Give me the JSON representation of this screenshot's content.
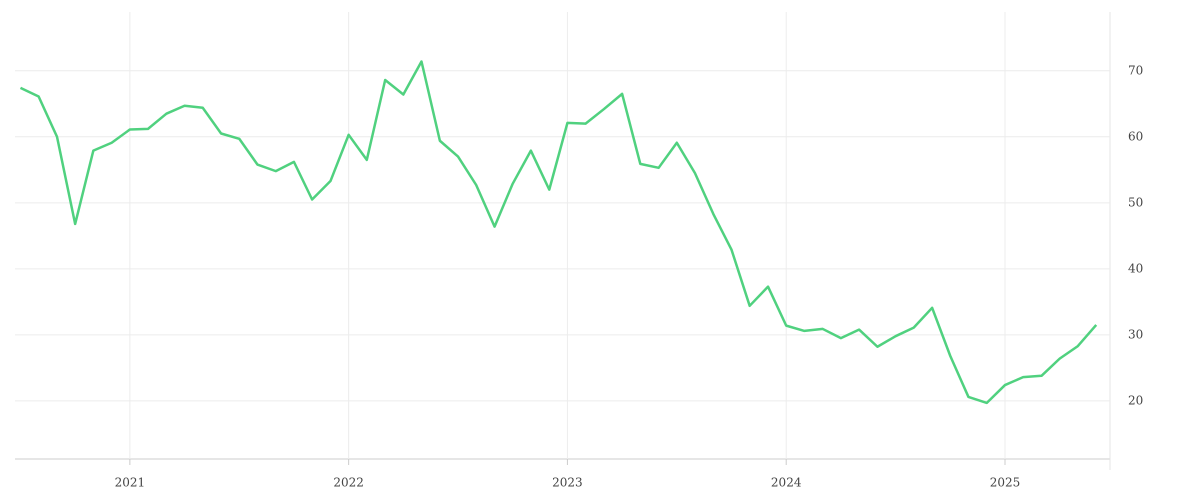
{
  "chart_data": {
    "type": "line",
    "color": "#50d17f",
    "grid": true,
    "x": [
      2020.5,
      2020.583,
      2020.667,
      2020.75,
      2020.833,
      2020.917,
      2021,
      2021.083,
      2021.167,
      2021.25,
      2021.333,
      2021.417,
      2021.5,
      2021.583,
      2021.667,
      2021.75,
      2021.833,
      2021.917,
      2022,
      2022.083,
      2022.167,
      2022.25,
      2022.333,
      2022.417,
      2022.5,
      2022.583,
      2022.667,
      2022.75,
      2022.833,
      2022.917,
      2023,
      2023.083,
      2023.167,
      2023.25,
      2023.333,
      2023.417,
      2023.5,
      2023.583,
      2023.667,
      2023.75,
      2023.833,
      2023.917,
      2024,
      2024.083,
      2024.167,
      2024.25,
      2024.333,
      2024.417,
      2024.5,
      2024.583,
      2024.667,
      2024.75,
      2024.833,
      2024.917,
      2025,
      2025.083,
      2025.167,
      2025.25,
      2025.333,
      2025.417
    ],
    "values": [
      67.4,
      66.1,
      60.0,
      46.8,
      57.9,
      59.1,
      61.1,
      61.2,
      63.5,
      64.7,
      64.4,
      60.5,
      59.7,
      55.8,
      54.8,
      56.2,
      50.5,
      53.3,
      60.3,
      56.5,
      68.6,
      66.4,
      71.4,
      59.4,
      57.0,
      52.7,
      46.4,
      52.9,
      57.9,
      52.0,
      62.1,
      62.0,
      64.2,
      66.5,
      55.9,
      55.3,
      59.1,
      54.5,
      48.3,
      42.9,
      34.4,
      37.3,
      31.4,
      30.6,
      30.9,
      29.5,
      30.8,
      28.2,
      29.8,
      31.1,
      34.1,
      26.8,
      20.6,
      19.7,
      22.4,
      23.6,
      23.8,
      26.4,
      28.3,
      31.5
    ],
    "xlim": [
      2020.475,
      2025.48
    ],
    "xticks": [
      2021,
      2022,
      2023,
      2024,
      2025
    ],
    "ylim": [
      11.2,
      78.9
    ],
    "yticks": [
      20,
      30,
      40,
      50,
      60,
      70
    ]
  }
}
